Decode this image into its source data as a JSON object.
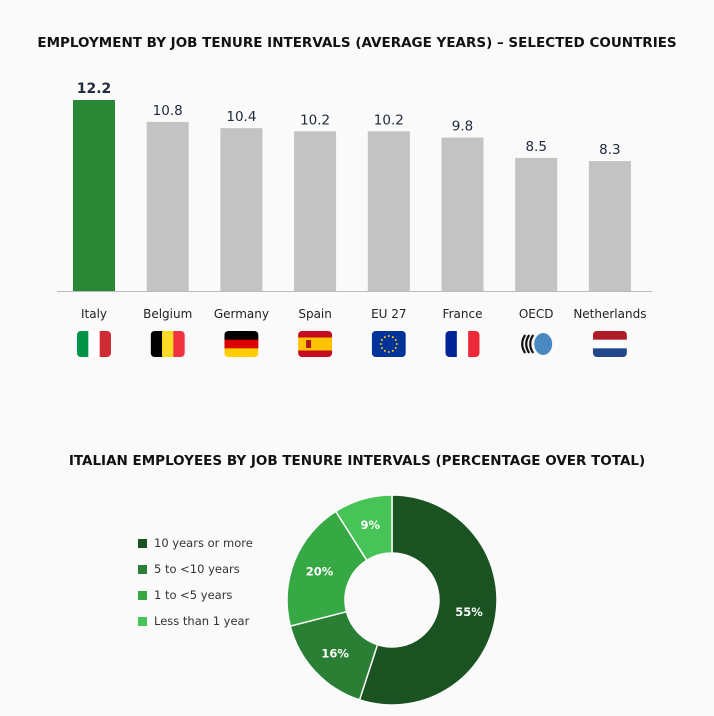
{
  "chart_data": [
    {
      "type": "bar",
      "title": "EMPLOYMENT BY JOB TENURE INTERVALS (AVERAGE YEARS) – SELECTED COUNTRIES",
      "categories": [
        "Italy",
        "Belgium",
        "Germany",
        "Spain",
        "EU 27",
        "France",
        "OECD",
        "Netherlands"
      ],
      "values": [
        12.2,
        10.8,
        10.4,
        10.2,
        10.2,
        9.8,
        8.5,
        8.3
      ],
      "value_labels": [
        "12.2",
        "10.8",
        "10.4",
        "10.2",
        "10.2",
        "9.8",
        "8.5",
        "8.3"
      ],
      "flag_icons": [
        "italy-flag-icon",
        "belgium-flag-icon",
        "germany-flag-icon",
        "spain-flag-icon",
        "eu-flag-icon",
        "france-flag-icon",
        "oecd-logo-icon",
        "netherlands-flag-icon"
      ],
      "highlight_color": "#2a8735",
      "bar_color": "#c3c3c3",
      "ylim": [
        0,
        12.2
      ],
      "grid": false
    },
    {
      "type": "pie",
      "title": "ITALIAN EMPLOYEES BY JOB TENURE INTERVALS (PERCENTAGE OVER TOTAL)",
      "donut": true,
      "labels": [
        "10 years or more",
        "5 to <10 years",
        "1 to <5 years",
        "Less than 1 year"
      ],
      "values": [
        55,
        16,
        20,
        9
      ],
      "value_labels": [
        "55%",
        "16%",
        "20%",
        "9%"
      ],
      "colors": [
        "#1b5222",
        "#2a7f35",
        "#36a945",
        "#47c457"
      ],
      "legend_position": "left"
    }
  ]
}
